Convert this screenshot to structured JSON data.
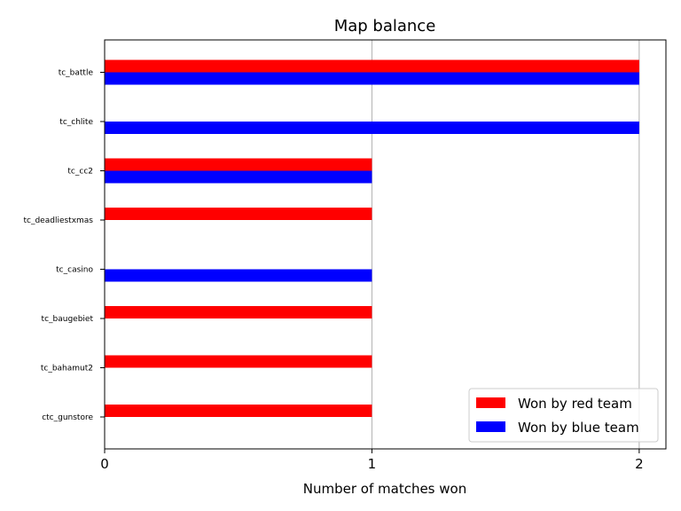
{
  "chart_data": {
    "type": "bar",
    "orientation": "horizontal",
    "title": "Map balance",
    "xlabel": "Number of matches won",
    "ylabel": "",
    "xlim": [
      0,
      2.1
    ],
    "xticks": [
      "0",
      "1",
      "2"
    ],
    "categories": [
      "tc_battle",
      "tc_chlite",
      "tc_cc2",
      "tc_deadliestxmas",
      "tc_casino",
      "tc_baugebiet",
      "tc_bahamut2",
      "ctc_gunstore"
    ],
    "series": [
      {
        "name": "Won by red team",
        "color": "#ff0000",
        "values": [
          2,
          0,
          1,
          1,
          0,
          1,
          1,
          1
        ]
      },
      {
        "name": "Won by blue team",
        "color": "#0000ff",
        "values": [
          2,
          2,
          1,
          0,
          1,
          0,
          0,
          0
        ]
      }
    ],
    "grid": "vertical",
    "legend": "lower-right"
  }
}
